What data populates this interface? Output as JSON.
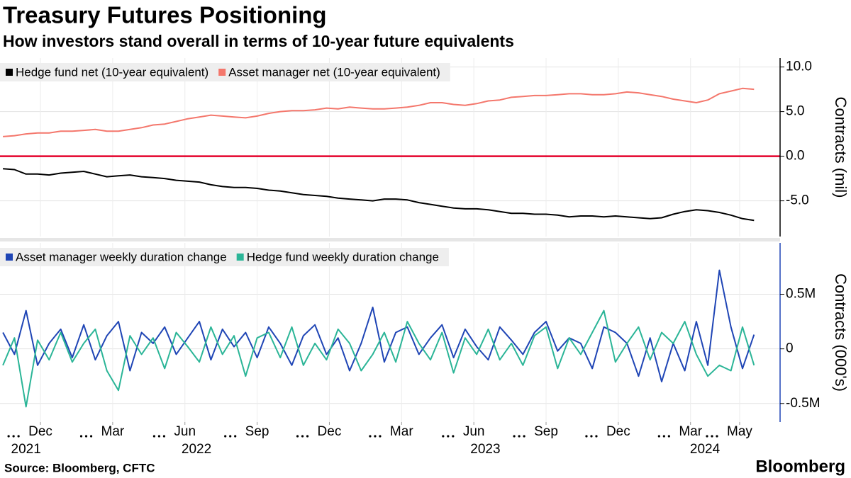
{
  "chart_data": [
    {
      "type": "line",
      "title": "Treasury Futures Positioning",
      "subtitle": "How investors stand overall in terms of 10-year future equivalents",
      "ylabel": "Contracts (mil)",
      "x": [
        2021.83,
        2021.87,
        2021.91,
        2021.95,
        2021.99,
        2022.03,
        2022.07,
        2022.11,
        2022.15,
        2022.19,
        2022.23,
        2022.27,
        2022.31,
        2022.35,
        2022.39,
        2022.43,
        2022.47,
        2022.51,
        2022.55,
        2022.59,
        2022.63,
        2022.67,
        2022.71,
        2022.75,
        2022.79,
        2022.83,
        2022.87,
        2022.91,
        2022.95,
        2022.99,
        2023.03,
        2023.07,
        2023.11,
        2023.15,
        2023.19,
        2023.23,
        2023.27,
        2023.31,
        2023.35,
        2023.39,
        2023.43,
        2023.47,
        2023.51,
        2023.55,
        2023.59,
        2023.63,
        2023.67,
        2023.71,
        2023.75,
        2023.79,
        2023.83,
        2023.87,
        2023.91,
        2023.95,
        2023.99,
        2024.03,
        2024.07,
        2024.11,
        2024.15,
        2024.19,
        2024.23,
        2024.27,
        2024.31,
        2024.35,
        2024.39,
        2024.43
      ],
      "xlim": [
        2021.82,
        2024.52
      ],
      "series": [
        {
          "name": "Hedge fund net (10-year equivalent)",
          "color": "#000000",
          "values": [
            -1.4,
            -1.5,
            -2.0,
            -2.0,
            -2.1,
            -1.9,
            -1.8,
            -1.7,
            -2.0,
            -2.3,
            -2.2,
            -2.1,
            -2.3,
            -2.4,
            -2.5,
            -2.7,
            -2.8,
            -2.9,
            -3.2,
            -3.4,
            -3.5,
            -3.5,
            -3.6,
            -3.8,
            -3.9,
            -4.1,
            -4.3,
            -4.4,
            -4.5,
            -4.7,
            -4.8,
            -4.9,
            -5.0,
            -4.8,
            -4.8,
            -4.9,
            -5.2,
            -5.4,
            -5.6,
            -5.8,
            -5.9,
            -5.9,
            -6.0,
            -6.2,
            -6.4,
            -6.4,
            -6.5,
            -6.5,
            -6.6,
            -6.8,
            -6.7,
            -6.7,
            -6.8,
            -6.7,
            -6.8,
            -6.9,
            -7.0,
            -6.9,
            -6.5,
            -6.2,
            -6.0,
            -6.1,
            -6.3,
            -6.6,
            -7.0,
            -7.2
          ]
        },
        {
          "name": "Asset manager net (10-year equivalent)",
          "color": "#f4776c",
          "values": [
            2.2,
            2.3,
            2.5,
            2.6,
            2.6,
            2.8,
            2.8,
            2.9,
            3.0,
            2.8,
            2.8,
            3.0,
            3.2,
            3.5,
            3.6,
            3.9,
            4.2,
            4.4,
            4.6,
            4.5,
            4.4,
            4.3,
            4.5,
            4.8,
            5.0,
            5.1,
            5.1,
            5.2,
            5.4,
            5.3,
            5.5,
            5.4,
            5.3,
            5.3,
            5.4,
            5.5,
            5.7,
            6.0,
            6.0,
            5.8,
            5.7,
            5.9,
            6.2,
            6.3,
            6.6,
            6.7,
            6.8,
            6.8,
            6.9,
            7.0,
            7.0,
            6.9,
            6.9,
            7.0,
            7.2,
            7.1,
            6.9,
            6.7,
            6.4,
            6.2,
            6.0,
            6.3,
            7.0,
            7.3,
            7.6,
            7.5
          ]
        }
      ],
      "ylim": [
        -9,
        11
      ],
      "yticks": [
        {
          "value": 10,
          "label": "10.0"
        },
        {
          "value": 5,
          "label": "5.0"
        },
        {
          "value": 0,
          "label": "0.0"
        },
        {
          "value": -5,
          "label": "-5.0"
        }
      ],
      "zero_line_color": "#e4002b",
      "grid": true,
      "legend": "upper left"
    },
    {
      "type": "line",
      "ylabel": "Contracts (000's)",
      "x": [
        2021.83,
        2021.87,
        2021.91,
        2021.95,
        2021.99,
        2022.03,
        2022.07,
        2022.11,
        2022.15,
        2022.19,
        2022.23,
        2022.27,
        2022.31,
        2022.35,
        2022.39,
        2022.43,
        2022.47,
        2022.51,
        2022.55,
        2022.59,
        2022.63,
        2022.67,
        2022.71,
        2022.75,
        2022.79,
        2022.83,
        2022.87,
        2022.91,
        2022.95,
        2022.99,
        2023.03,
        2023.07,
        2023.11,
        2023.15,
        2023.19,
        2023.23,
        2023.27,
        2023.31,
        2023.35,
        2023.39,
        2023.43,
        2023.47,
        2023.51,
        2023.55,
        2023.59,
        2023.63,
        2023.67,
        2023.71,
        2023.75,
        2023.79,
        2023.83,
        2023.87,
        2023.91,
        2023.95,
        2023.99,
        2024.03,
        2024.07,
        2024.11,
        2024.15,
        2024.19,
        2024.23,
        2024.27,
        2024.31,
        2024.35,
        2024.39,
        2024.43
      ],
      "xlim": [
        2021.82,
        2024.52
      ],
      "series": [
        {
          "name": "Asset manager weekly duration change",
          "color": "#1f45b5",
          "values": [
            0.15,
            -0.05,
            0.35,
            -0.15,
            0.05,
            0.18,
            -0.08,
            0.22,
            -0.1,
            0.12,
            0.25,
            -0.2,
            0.15,
            0.05,
            0.2,
            -0.05,
            0.1,
            0.25,
            -0.1,
            0.18,
            0.02,
            0.15,
            -0.08,
            0.2,
            0.05,
            -0.15,
            0.12,
            0.22,
            -0.05,
            0.1,
            -0.2,
            0.05,
            0.38,
            -0.12,
            0.15,
            0.2,
            -0.05,
            0.1,
            0.22,
            -0.08,
            0.18,
            0.02,
            -0.1,
            0.2,
            0.08,
            -0.05,
            0.15,
            0.25,
            -0.02,
            0.1,
            0.05,
            -0.18,
            0.2,
            0.15,
            0.05,
            -0.25,
            0.1,
            -0.3,
            0.05,
            -0.2,
            0.25,
            -0.15,
            0.72,
            0.2,
            -0.18,
            0.13
          ]
        },
        {
          "name": "Hedge fund weekly duration change",
          "color": "#2bb597",
          "values": [
            -0.15,
            0.1,
            -0.53,
            0.08,
            -0.1,
            0.15,
            -0.12,
            0.05,
            0.18,
            -0.2,
            -0.38,
            0.12,
            -0.05,
            0.1,
            -0.18,
            0.15,
            0.02,
            -0.12,
            0.2,
            -0.05,
            0.12,
            -0.25,
            0.1,
            0.15,
            -0.08,
            0.2,
            -0.15,
            0.05,
            -0.1,
            0.18,
            0.05,
            -0.2,
            -0.05,
            0.15,
            -0.12,
            0.25,
            0.05,
            -0.1,
            0.15,
            -0.22,
            0.1,
            -0.05,
            0.18,
            -0.1,
            0.05,
            -0.15,
            0.12,
            0.2,
            -0.18,
            0.1,
            -0.05,
            0.15,
            0.35,
            -0.12,
            0.05,
            0.2,
            -0.1,
            0.15,
            0.05,
            0.25,
            -0.05,
            -0.25,
            -0.15,
            -0.2,
            0.2,
            -0.15
          ]
        }
      ],
      "ylim": [
        -0.67,
        0.97
      ],
      "yticks": [
        {
          "value": 0.5,
          "label": "0.5M"
        },
        0,
        {
          "value": -0.5,
          "label": "-0.5M"
        }
      ],
      "xticks": [
        {
          "value": 2021.96,
          "label": "Dec"
        },
        {
          "value": 2022.21,
          "label": "Mar"
        },
        {
          "value": 2022.46,
          "label": "Jun"
        },
        {
          "value": 2022.71,
          "label": "Sep"
        },
        {
          "value": 2022.96,
          "label": "Dec"
        },
        {
          "value": 2023.21,
          "label": "Mar"
        },
        {
          "value": 2023.46,
          "label": "Jun"
        },
        {
          "value": 2023.71,
          "label": "Sep"
        },
        {
          "value": 2023.96,
          "label": "Dec"
        },
        {
          "value": 2024.21,
          "label": "Mar"
        },
        {
          "value": 2024.38,
          "label": "May"
        }
      ],
      "xyears": [
        {
          "value": 2021.91,
          "label": "2021"
        },
        {
          "value": 2022.5,
          "label": "2022"
        },
        {
          "value": 2023.5,
          "label": "2023"
        },
        {
          "value": 2024.26,
          "label": "2024"
        }
      ],
      "grid": true,
      "legend": "upper left"
    }
  ],
  "footer": {
    "source": "Source: Bloomberg, CFTC",
    "brand": "Bloomberg"
  }
}
